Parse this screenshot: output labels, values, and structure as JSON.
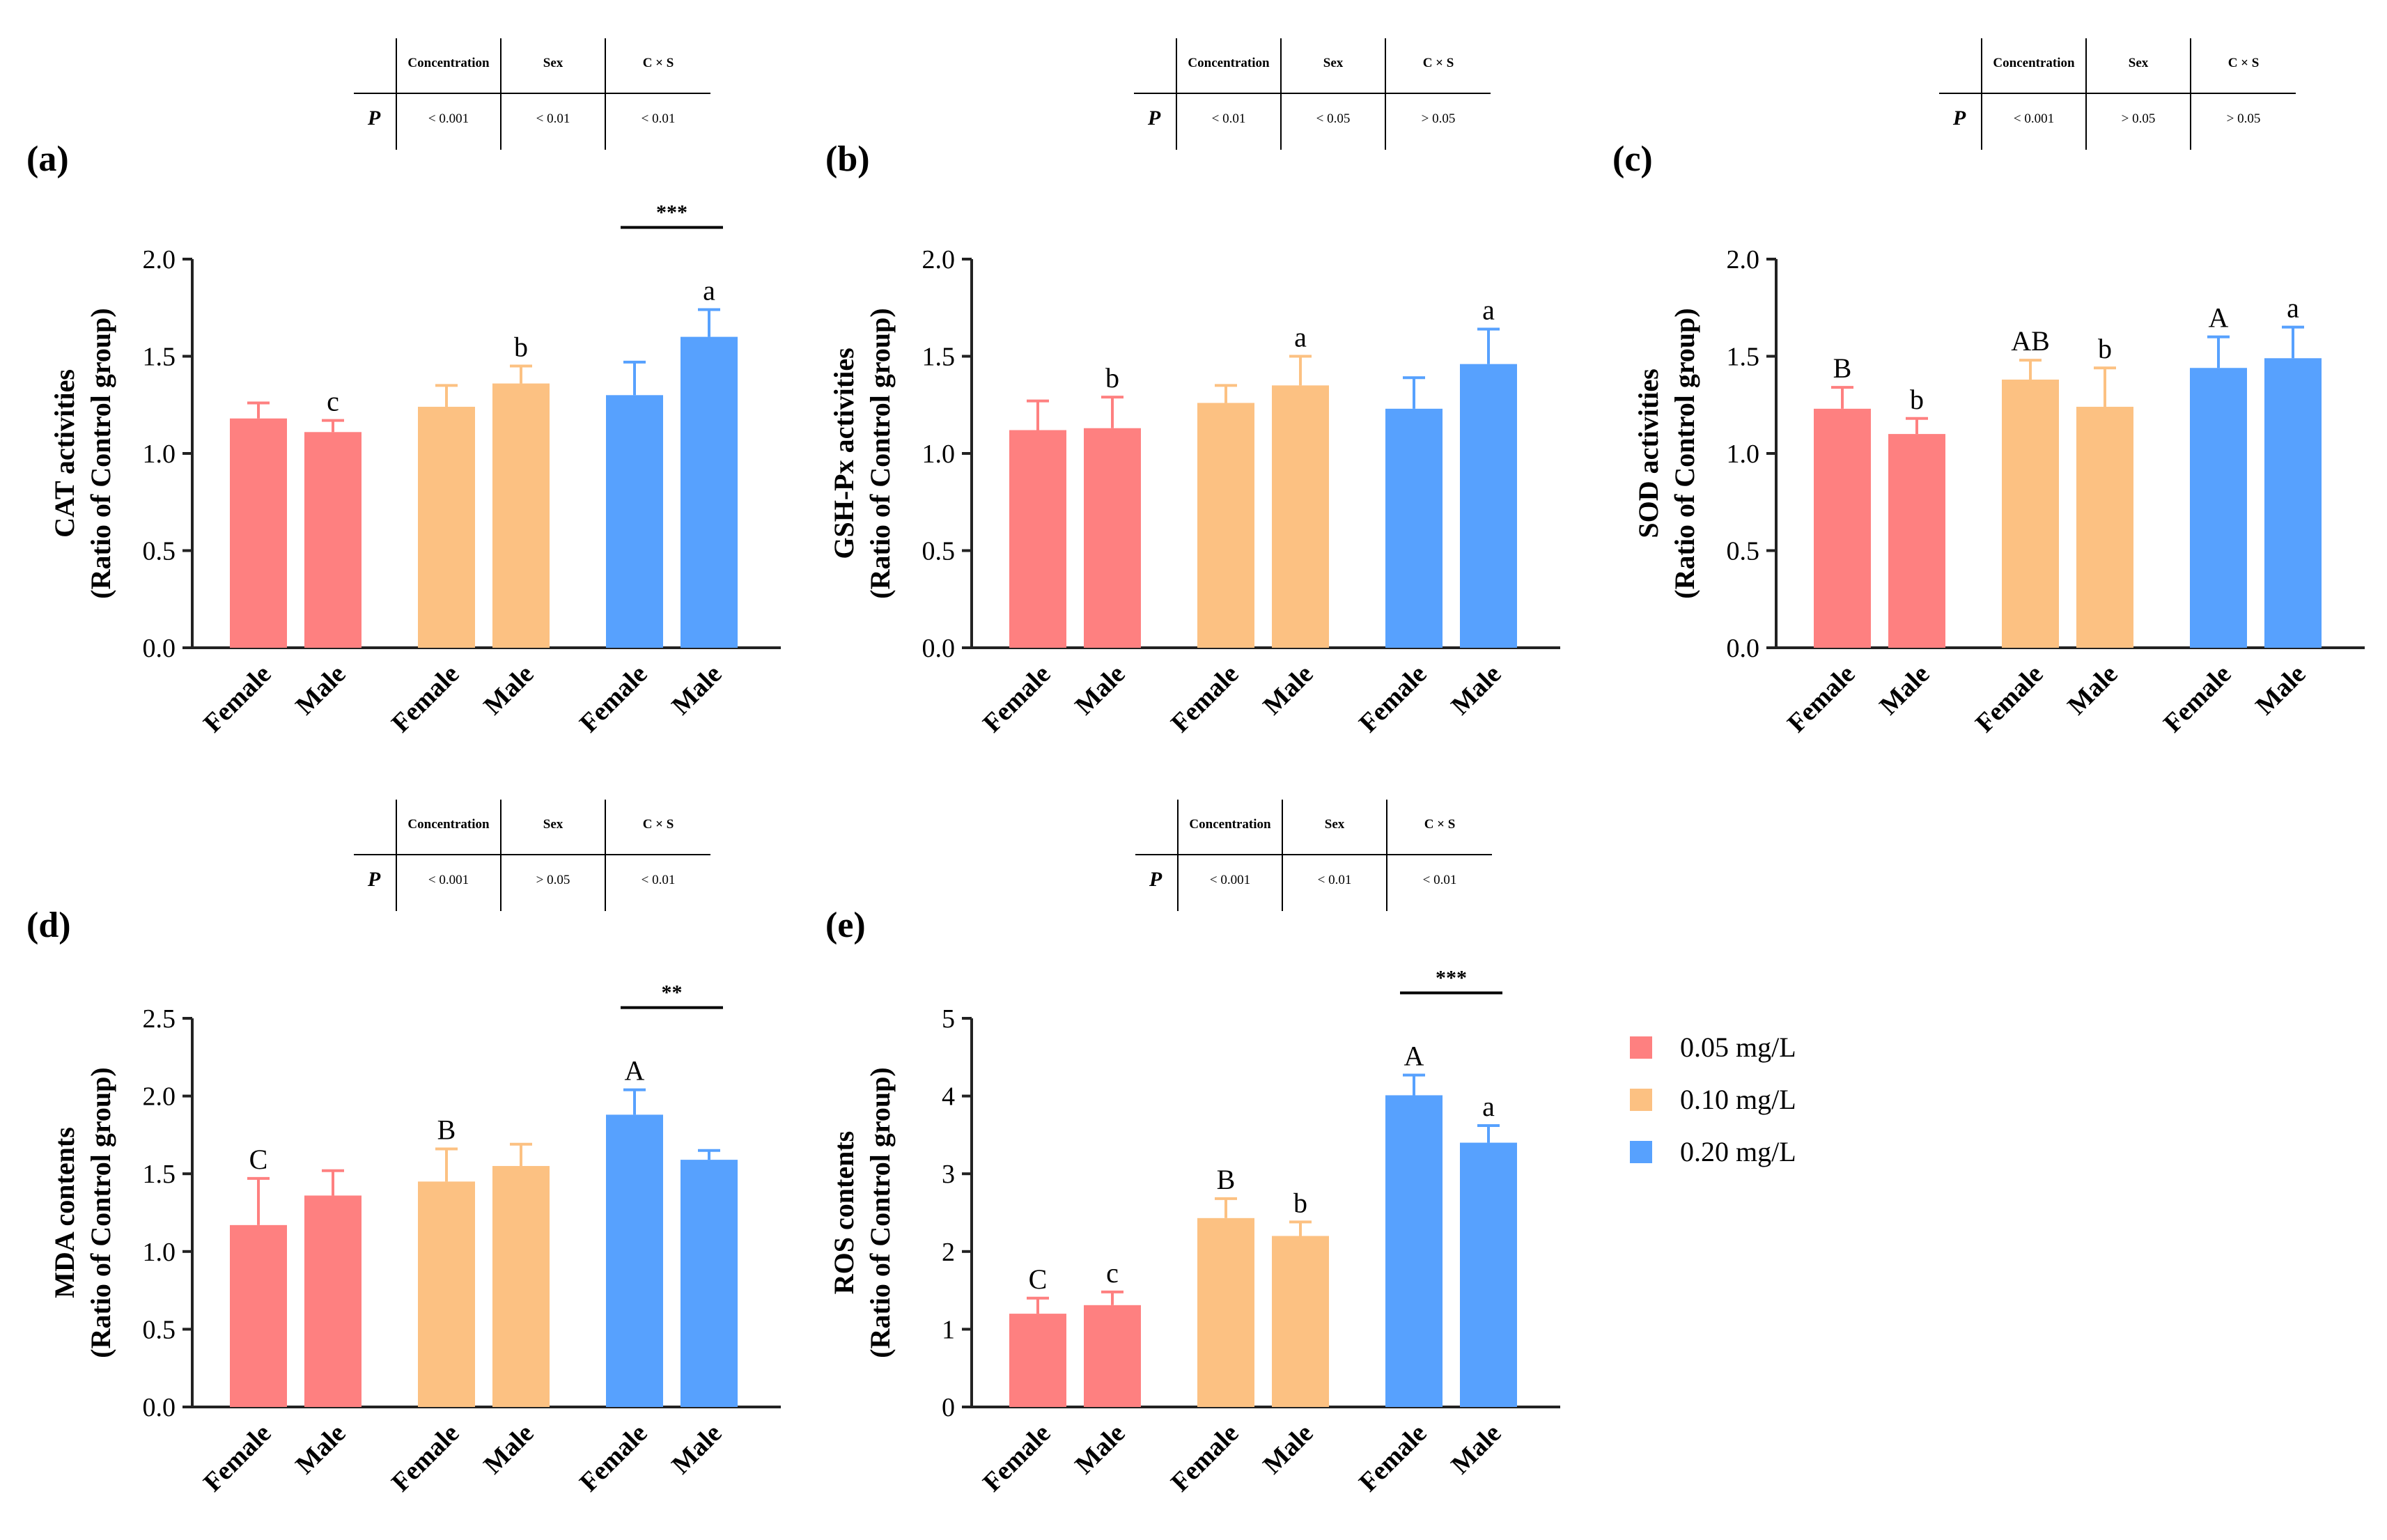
{
  "colors": {
    "low": "#fe8080",
    "mid": "#fcc182",
    "high": "#57a1fe",
    "axis": "#222222"
  },
  "legend": {
    "items": [
      {
        "label": "0.05 mg/L",
        "color": "#fe8080"
      },
      {
        "label": "0.10 mg/L",
        "color": "#fcc182"
      },
      {
        "label": "0.20 mg/L",
        "color": "#57a1fe"
      }
    ]
  },
  "chart_data": [
    {
      "panel": "(a)",
      "type": "bar",
      "ylabel": [
        "CAT activities",
        "(Ratio of Control group)"
      ],
      "yticks": [
        "0.0",
        "0.5",
        "1.0",
        "1.5",
        "2.0"
      ],
      "ylim": [
        0,
        2.0
      ],
      "categories": [
        "Female",
        "Male",
        "Female",
        "Male",
        "Female",
        "Male"
      ],
      "values": [
        1.18,
        1.11,
        1.24,
        1.36,
        1.3,
        1.6
      ],
      "errors": [
        0.08,
        0.06,
        0.11,
        0.09,
        0.17,
        0.14
      ],
      "groups": [
        "0.05 mg/L",
        "0.05 mg/L",
        "0.10 mg/L",
        "0.10 mg/L",
        "0.20 mg/L",
        "0.20 mg/L"
      ],
      "letters": [
        "",
        "c",
        "",
        "b",
        "",
        "a"
      ],
      "significance": {
        "bars": [
          4,
          5
        ],
        "label": "***"
      },
      "ptable": {
        "headers": [
          "Concentration",
          "Sex",
          "C × S"
        ],
        "row_label": "P",
        "values": [
          "< 0.001",
          "< 0.01",
          "< 0.01"
        ]
      }
    },
    {
      "panel": "(b)",
      "type": "bar",
      "ylabel": [
        "GSH-Px activities",
        "(Ratio of Control group)"
      ],
      "yticks": [
        "0.0",
        "0.5",
        "1.0",
        "1.5",
        "2.0"
      ],
      "ylim": [
        0,
        2.0
      ],
      "categories": [
        "Female",
        "Male",
        "Female",
        "Male",
        "Female",
        "Male"
      ],
      "values": [
        1.12,
        1.13,
        1.26,
        1.35,
        1.23,
        1.46
      ],
      "errors": [
        0.15,
        0.16,
        0.09,
        0.15,
        0.16,
        0.18
      ],
      "groups": [
        "0.05 mg/L",
        "0.05 mg/L",
        "0.10 mg/L",
        "0.10 mg/L",
        "0.20 mg/L",
        "0.20 mg/L"
      ],
      "letters": [
        "",
        "b",
        "",
        "a",
        "",
        "a"
      ],
      "significance": null,
      "ptable": {
        "headers": [
          "Concentration",
          "Sex",
          "C × S"
        ],
        "row_label": "P",
        "values": [
          "< 0.01",
          "< 0.05",
          "> 0.05"
        ]
      }
    },
    {
      "panel": "(c)",
      "type": "bar",
      "ylabel": [
        "SOD activities",
        "(Ratio of Control group)"
      ],
      "yticks": [
        "0.0",
        "0.5",
        "1.0",
        "1.5",
        "2.0"
      ],
      "ylim": [
        0,
        2.0
      ],
      "categories": [
        "Female",
        "Male",
        "Female",
        "Male",
        "Female",
        "Male"
      ],
      "values": [
        1.23,
        1.1,
        1.38,
        1.24,
        1.44,
        1.49
      ],
      "errors": [
        0.11,
        0.08,
        0.1,
        0.2,
        0.16,
        0.16
      ],
      "groups": [
        "0.05 mg/L",
        "0.05 mg/L",
        "0.10 mg/L",
        "0.10 mg/L",
        "0.20 mg/L",
        "0.20 mg/L"
      ],
      "letters": [
        "B",
        "b",
        "AB",
        "b",
        "A",
        "a"
      ],
      "significance": null,
      "ptable": {
        "headers": [
          "Concentration",
          "Sex",
          "C × S"
        ],
        "row_label": "P",
        "values": [
          "< 0.001",
          "> 0.05",
          "> 0.05"
        ]
      }
    },
    {
      "panel": "(d)",
      "type": "bar",
      "ylabel": [
        "MDA contents",
        "(Ratio of Control group)"
      ],
      "yticks": [
        "0.0",
        "0.5",
        "1.0",
        "1.5",
        "2.0",
        "2.5"
      ],
      "ylim": [
        0,
        2.5
      ],
      "categories": [
        "Female",
        "Male",
        "Female",
        "Male",
        "Female",
        "Male"
      ],
      "values": [
        1.17,
        1.36,
        1.45,
        1.55,
        1.88,
        1.59
      ],
      "errors": [
        0.3,
        0.16,
        0.21,
        0.14,
        0.16,
        0.06
      ],
      "groups": [
        "0.05 mg/L",
        "0.05 mg/L",
        "0.10 mg/L",
        "0.10 mg/L",
        "0.20 mg/L",
        "0.20 mg/L"
      ],
      "letters": [
        "C",
        "",
        "B",
        "",
        "A",
        ""
      ],
      "significance": {
        "bars": [
          4,
          5
        ],
        "label": "**"
      },
      "ptable": {
        "headers": [
          "Concentration",
          "Sex",
          "C × S"
        ],
        "row_label": "P",
        "values": [
          "< 0.001",
          "> 0.05",
          "< 0.01"
        ]
      }
    },
    {
      "panel": "(e)",
      "type": "bar",
      "ylabel": [
        "ROS contents",
        "(Ratio of Control group)"
      ],
      "yticks": [
        "0",
        "1",
        "2",
        "3",
        "4",
        "5"
      ],
      "ylim": [
        0,
        5
      ],
      "categories": [
        "Female",
        "Male",
        "Female",
        "Male",
        "Female",
        "Male"
      ],
      "values": [
        1.2,
        1.31,
        2.43,
        2.2,
        4.01,
        3.4
      ],
      "errors": [
        0.2,
        0.17,
        0.25,
        0.18,
        0.26,
        0.22
      ],
      "groups": [
        "0.05 mg/L",
        "0.05 mg/L",
        "0.10 mg/L",
        "0.10 mg/L",
        "0.20 mg/L",
        "0.20 mg/L"
      ],
      "letters": [
        "C",
        "c",
        "B",
        "b",
        "A",
        "a"
      ],
      "significance": {
        "bars": [
          4,
          5
        ],
        "label": "***"
      },
      "ptable": {
        "headers": [
          "Concentration",
          "Sex",
          "C × S"
        ],
        "row_label": "P",
        "values": [
          "< 0.001",
          "< 0.01",
          "< 0.01"
        ]
      }
    }
  ]
}
